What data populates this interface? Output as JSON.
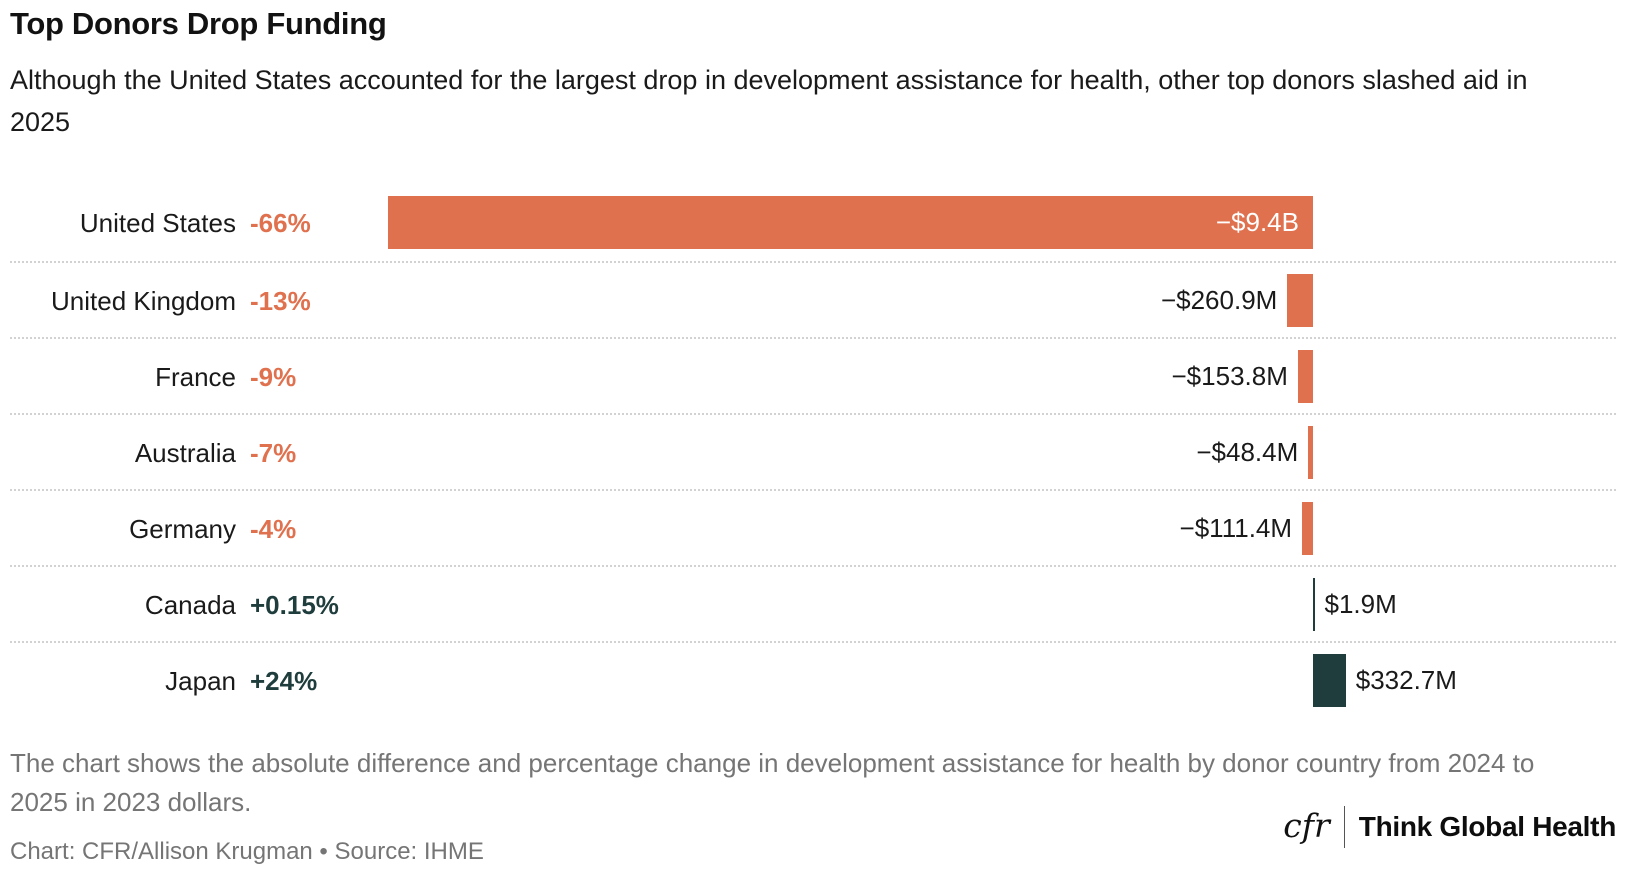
{
  "header": {
    "title": "Top Donors Drop Funding",
    "subtitle": "Although the United States accounted for the largest drop in development assistance for health, other top donors slashed aid in 2025"
  },
  "chart_data": {
    "type": "bar",
    "orientation": "horizontal-diverging",
    "unit": "USD (2023 dollars)",
    "baseline": 0,
    "colors": {
      "negative": "#E0714E",
      "positive": "#1E3D3C"
    },
    "categories": [
      "United States",
      "United Kingdom",
      "France",
      "Australia",
      "Germany",
      "Canada",
      "Japan"
    ],
    "rows": [
      {
        "country": "United States",
        "pct": "-66%",
        "value_label": "−$9.4B",
        "value_musd": -9400,
        "label_inside": true
      },
      {
        "country": "United Kingdom",
        "pct": "-13%",
        "value_label": "−$260.9M",
        "value_musd": -260.9,
        "label_inside": false
      },
      {
        "country": "France",
        "pct": "-9%",
        "value_label": "−$153.8M",
        "value_musd": -153.8,
        "label_inside": false
      },
      {
        "country": "Australia",
        "pct": "-7%",
        "value_label": "−$48.4M",
        "value_musd": -48.4,
        "label_inside": false
      },
      {
        "country": "Germany",
        "pct": "-4%",
        "value_label": "−$111.4M",
        "value_musd": -111.4,
        "label_inside": false
      },
      {
        "country": "Canada",
        "pct": "+0.15%",
        "value_label": "$1.9M",
        "value_musd": 1.9,
        "label_inside": false
      },
      {
        "country": "Japan",
        "pct": "+24%",
        "value_label": "$332.7M",
        "value_musd": 332.7,
        "label_inside": false
      }
    ]
  },
  "footer": {
    "note": "The chart shows the absolute difference and percentage change in development assistance for health by donor country from 2024 to 2025 in 2023 dollars.",
    "credit": "Chart: CFR/Allison Krugman • Source: IHME",
    "logo": {
      "cfr": "cfr",
      "brand": "Think Global Health"
    }
  }
}
